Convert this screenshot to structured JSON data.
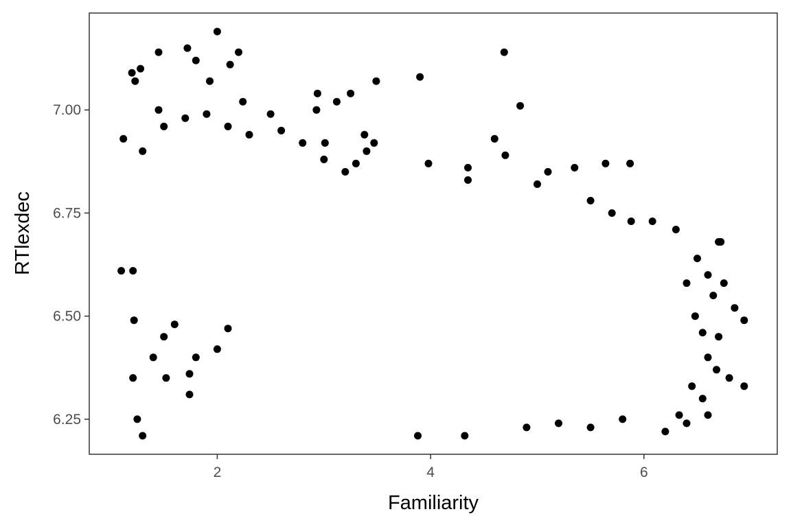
{
  "chart_data": {
    "type": "scatter",
    "xlabel": "Familiarity",
    "ylabel": "RTlexdec",
    "xlim": [
      0.8,
      7.25
    ],
    "ylim": [
      6.165,
      7.235
    ],
    "x_ticks": [
      2,
      4,
      6
    ],
    "x_tick_labels": [
      "2",
      "4",
      "6"
    ],
    "y_ticks": [
      6.25,
      6.5,
      6.75,
      7.0
    ],
    "y_tick_labels": [
      "6.25",
      "6.50",
      "6.75",
      "7.00"
    ],
    "grid": false,
    "legend": "none",
    "point_color": "#000000",
    "trend": "negative",
    "points": [
      [
        2.0,
        7.19
      ],
      [
        1.72,
        7.15
      ],
      [
        4.69,
        7.14
      ],
      [
        1.45,
        7.14
      ],
      [
        2.2,
        7.14
      ],
      [
        1.8,
        7.12
      ],
      [
        2.12,
        7.11
      ],
      [
        1.28,
        7.1
      ],
      [
        1.2,
        7.09
      ],
      [
        1.23,
        7.07
      ],
      [
        1.93,
        7.07
      ],
      [
        3.9,
        7.08
      ],
      [
        3.49,
        7.07
      ],
      [
        2.94,
        7.04
      ],
      [
        3.25,
        7.04
      ],
      [
        3.12,
        7.02
      ],
      [
        2.24,
        7.02
      ],
      [
        4.84,
        7.01
      ],
      [
        1.45,
        7.0
      ],
      [
        2.5,
        6.99
      ],
      [
        2.93,
        7.0
      ],
      [
        1.12,
        6.93
      ],
      [
        4.6,
        6.93
      ],
      [
        4.7,
        6.89
      ],
      [
        3.38,
        6.94
      ],
      [
        3.47,
        6.92
      ],
      [
        3.4,
        6.9
      ],
      [
        3.01,
        6.92
      ],
      [
        3.3,
        6.87
      ],
      [
        5.87,
        6.87
      ],
      [
        5.64,
        6.87
      ],
      [
        5.35,
        6.86
      ],
      [
        4.35,
        6.86
      ],
      [
        4.35,
        6.83
      ],
      [
        3.98,
        6.87
      ],
      [
        1.3,
        6.9
      ],
      [
        1.5,
        6.96
      ],
      [
        1.7,
        6.98
      ],
      [
        1.9,
        6.99
      ],
      [
        2.1,
        6.96
      ],
      [
        2.3,
        6.94
      ],
      [
        2.6,
        6.95
      ],
      [
        2.8,
        6.92
      ],
      [
        3.0,
        6.88
      ],
      [
        3.2,
        6.85
      ],
      [
        1.1,
        6.61
      ],
      [
        1.21,
        6.61
      ],
      [
        1.22,
        6.49
      ],
      [
        1.21,
        6.35
      ],
      [
        1.25,
        6.25
      ],
      [
        1.3,
        6.21
      ],
      [
        1.52,
        6.35
      ],
      [
        1.74,
        6.31
      ],
      [
        1.74,
        6.36
      ],
      [
        1.4,
        6.4
      ],
      [
        1.5,
        6.45
      ],
      [
        1.6,
        6.48
      ],
      [
        1.8,
        6.4
      ],
      [
        2.0,
        6.42
      ],
      [
        2.1,
        6.47
      ],
      [
        3.88,
        6.21
      ],
      [
        4.32,
        6.21
      ],
      [
        4.9,
        6.23
      ],
      [
        5.5,
        6.23
      ],
      [
        6.2,
        6.22
      ],
      [
        6.33,
        6.26
      ],
      [
        6.6,
        6.26
      ],
      [
        6.4,
        6.24
      ],
      [
        5.8,
        6.25
      ],
      [
        5.2,
        6.24
      ],
      [
        6.94,
        6.49
      ],
      [
        6.94,
        6.33
      ],
      [
        6.8,
        6.35
      ],
      [
        6.85,
        6.52
      ],
      [
        6.75,
        6.58
      ],
      [
        6.7,
        6.68
      ],
      [
        6.72,
        6.68
      ],
      [
        6.5,
        6.64
      ],
      [
        6.3,
        6.71
      ],
      [
        6.08,
        6.73
      ],
      [
        5.88,
        6.73
      ],
      [
        5.7,
        6.75
      ],
      [
        5.5,
        6.78
      ],
      [
        5.1,
        6.85
      ],
      [
        5.0,
        6.82
      ],
      [
        6.6,
        6.6
      ],
      [
        6.65,
        6.55
      ],
      [
        6.7,
        6.45
      ],
      [
        6.6,
        6.4
      ],
      [
        6.55,
        6.3
      ],
      [
        6.45,
        6.33
      ],
      [
        6.48,
        6.5
      ],
      [
        6.4,
        6.58
      ],
      [
        6.55,
        6.46
      ],
      [
        6.68,
        6.37
      ]
    ]
  }
}
